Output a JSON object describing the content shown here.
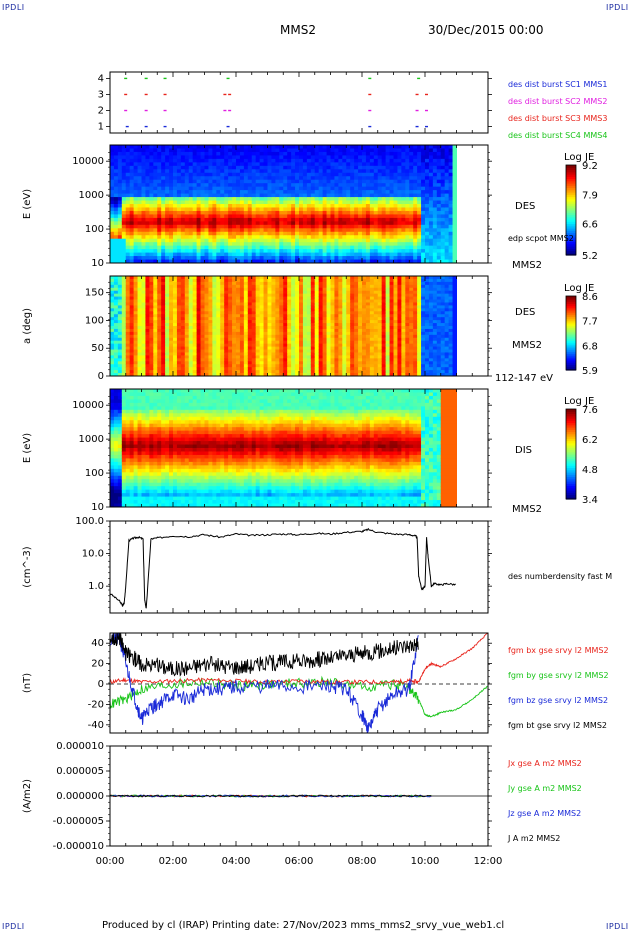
{
  "header": {
    "corner_label": "IPDLI",
    "spacecraft": "MMS2",
    "date": "30/Dec/2015 00:00"
  },
  "footer": {
    "text": "Produced by cl (IRAP)   Printing date: 27/Nov/2023   mms_mms2_srvy_vue_web1.cl"
  },
  "time_axis": {
    "ticks": [
      "00:00",
      "02:00",
      "04:00",
      "06:00",
      "08:00",
      "10:00",
      "12:00"
    ],
    "range_hours": [
      0,
      12
    ]
  },
  "colors": {
    "red": "#e8241c",
    "green": "#18c418",
    "blue": "#1a2ad8",
    "magenta": "#e020e0",
    "black": "#000000"
  },
  "chart_data": [
    {
      "type": "scatter",
      "panel": "burst",
      "yticks": [
        "1",
        "2",
        "3",
        "4"
      ],
      "ylim": [
        0.6,
        4.4
      ],
      "series": [
        {
          "name": "des dist burst SC1 MMS1",
          "color": "blue",
          "level": 1,
          "x": [
            0.5,
            1.1,
            1.7,
            3.7,
            8.2,
            9.7,
            10.0
          ]
        },
        {
          "name": "des dist burst SC2 MMS2",
          "color": "magenta",
          "level": 2,
          "x": [
            0.45,
            1.1,
            1.7,
            3.6,
            3.75,
            8.2,
            9.7,
            10.0
          ]
        },
        {
          "name": "des dist burst SC3 MMS3",
          "color": "red",
          "level": 3,
          "x": [
            0.45,
            1.1,
            1.7,
            3.6,
            3.75,
            8.2,
            9.7,
            10.0
          ]
        },
        {
          "name": "des dist burst SC4 MMS4",
          "color": "green",
          "level": 4,
          "x": [
            0.45,
            1.1,
            1.7,
            3.7,
            8.2,
            9.75
          ]
        }
      ]
    },
    {
      "type": "heatmap",
      "panel": "des-energy",
      "ylabel": "E (eV)",
      "yticks": [
        "10",
        "100",
        "1000",
        "10000"
      ],
      "ylim": [
        10,
        30000
      ],
      "yscale": "log",
      "label": "DES",
      "sublabel": "MMS2",
      "overlay": "edp scpot MMS2",
      "colorbar": {
        "title": "Log JE",
        "ticks": [
          "5.2",
          "6.6",
          "7.9",
          "9.2"
        ],
        "range": [
          5.2,
          9.2
        ]
      }
    },
    {
      "type": "heatmap",
      "panel": "des-pitch",
      "ylabel": "a (deg)",
      "yticks": [
        "0",
        "50",
        "100",
        "150"
      ],
      "ylim": [
        0,
        180
      ],
      "label": "DES",
      "sublabel": "MMS2",
      "energy_range": "112-147 eV",
      "colorbar": {
        "title": "Log JE",
        "ticks": [
          "5.9",
          "6.8",
          "7.7",
          "8.6"
        ],
        "range": [
          5.9,
          8.6
        ]
      }
    },
    {
      "type": "heatmap",
      "panel": "dis-energy",
      "ylabel": "E (eV)",
      "yticks": [
        "10",
        "100",
        "1000",
        "10000"
      ],
      "ylim": [
        10,
        30000
      ],
      "yscale": "log",
      "label": "DIS",
      "sublabel": "MMS2",
      "colorbar": {
        "title": "Log JE",
        "ticks": [
          "3.4",
          "4.8",
          "6.2",
          "7.6"
        ],
        "range": [
          3.4,
          7.6
        ]
      }
    },
    {
      "type": "line",
      "panel": "density",
      "ylabel": "(cm^-3)",
      "yticks": [
        "1.0",
        "10.0",
        "100.0"
      ],
      "ylim": [
        0.15,
        100
      ],
      "yscale": "log",
      "series": [
        {
          "name": "des numberdensity fast M",
          "color": "black",
          "x": [
            0.0,
            0.3,
            0.4,
            0.45,
            0.5,
            0.6,
            0.75,
            0.9,
            1.05,
            1.1,
            1.15,
            1.3,
            1.5,
            2.0,
            2.5,
            3.0,
            3.5,
            4.0,
            4.5,
            5.0,
            5.5,
            6.0,
            6.5,
            7.0,
            7.5,
            8.0,
            8.2,
            8.5,
            9.0,
            9.5,
            9.7,
            9.75,
            9.8,
            9.9,
            10.0,
            10.05,
            10.1,
            10.2,
            10.3,
            10.5,
            10.7,
            11.0
          ],
          "y": [
            0.6,
            0.35,
            0.25,
            0.3,
            1.0,
            25,
            30,
            32,
            28,
            0.4,
            0.2,
            28,
            30,
            35,
            33,
            38,
            32,
            40,
            36,
            38,
            40,
            38,
            42,
            40,
            45,
            48,
            55,
            45,
            40,
            38,
            35,
            30,
            2.0,
            0.8,
            1.0,
            30,
            8,
            1.0,
            1.2,
            1.1,
            1.2,
            1.1
          ]
        }
      ]
    },
    {
      "type": "line",
      "panel": "fgm",
      "ylabel": "(nT)",
      "yticks": [
        "-40",
        "-20",
        "0",
        "20",
        "40"
      ],
      "ylim": [
        -48,
        50
      ],
      "series": [
        {
          "name": "fgm bx gse srvy l2 MMS2",
          "color": "red",
          "x": [
            0,
            0.5,
            1,
            2,
            3,
            4,
            5,
            6,
            7,
            8,
            9,
            9.5,
            9.8,
            10,
            10.2,
            10.5,
            11,
            11.5,
            12
          ],
          "y": [
            2,
            4,
            2,
            3,
            4,
            3,
            2,
            3,
            2,
            2,
            2,
            3,
            2,
            15,
            20,
            17,
            25,
            35,
            50
          ]
        },
        {
          "name": "fgm by gse srvy l2 MMS2",
          "color": "green",
          "x": [
            0,
            0.5,
            1,
            2,
            3,
            4,
            5,
            6,
            7,
            8,
            9,
            9.5,
            9.8,
            10,
            10.2,
            10.5,
            11,
            11.5,
            12
          ],
          "y": [
            -20,
            -15,
            -5,
            0,
            2,
            -2,
            0,
            1,
            2,
            -3,
            0,
            -5,
            -15,
            -30,
            -32,
            -28,
            -25,
            -15,
            -2
          ]
        },
        {
          "name": "fgm bz gse srvy l2 MMS2",
          "color": "blue",
          "x": [
            0,
            0.3,
            0.5,
            0.8,
            1,
            1.2,
            1.5,
            2,
            2.5,
            3,
            3.5,
            4,
            5,
            6,
            7,
            7.5,
            8,
            8.2,
            8.5,
            9,
            9.5,
            9.8
          ],
          "y": [
            42,
            45,
            20,
            -15,
            -35,
            -25,
            -20,
            -10,
            -15,
            -5,
            -5,
            -3,
            -2,
            -3,
            -2,
            -5,
            -30,
            -45,
            -25,
            -10,
            -5,
            48
          ]
        },
        {
          "name": "fgm bt gse srvy l2 MMS2",
          "color": "black",
          "x": [
            0,
            0.3,
            0.5,
            0.8,
            1,
            1.5,
            2,
            2.5,
            3,
            3.5,
            4,
            4.5,
            5,
            5.5,
            6,
            6.5,
            7,
            7.5,
            8,
            8.5,
            9,
            9.5,
            9.8
          ],
          "y": [
            45,
            45,
            30,
            25,
            20,
            18,
            15,
            16,
            20,
            18,
            17,
            18,
            20,
            22,
            22,
            24,
            25,
            28,
            30,
            32,
            35,
            38,
            40
          ]
        }
      ],
      "reference_line": 0
    },
    {
      "type": "line",
      "panel": "current",
      "ylabel": "(A/m2)",
      "yticks": [
        "-0.000010",
        "-0.000005",
        "0.000000",
        "0.000005",
        "0.000010"
      ],
      "ylim": [
        -1e-05,
        1e-05
      ],
      "series": [
        {
          "name": "Jx gse A m2 MMS2",
          "color": "red"
        },
        {
          "name": "Jy gse A m2 MMS2",
          "color": "green"
        },
        {
          "name": "Jz gse A m2 MMS2",
          "color": "blue"
        },
        {
          "name": "J A m2 MMS2",
          "color": "black"
        }
      ],
      "x_extent": [
        0,
        10.2
      ]
    }
  ]
}
